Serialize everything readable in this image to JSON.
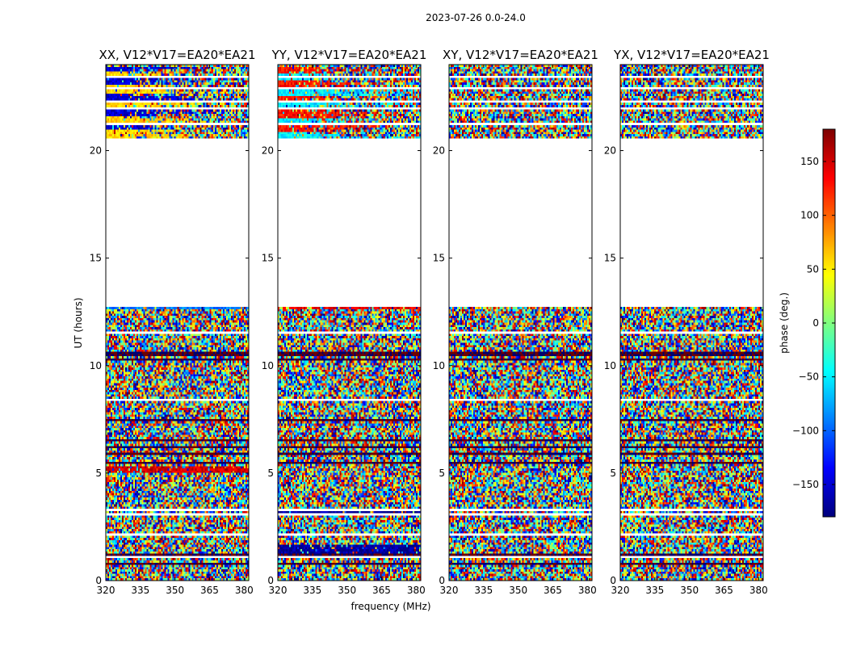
{
  "chart_data": {
    "type": "heatmap",
    "suptitle": "2023-07-26 0.0-24.0",
    "xlabel": "frequency (MHz)",
    "ylabel": "UT (hours)",
    "xlim": [
      320,
      382
    ],
    "ylim": [
      0,
      24
    ],
    "x_ticks": [
      320,
      335,
      350,
      365,
      380
    ],
    "y_ticks": [
      0,
      5,
      10,
      15,
      20
    ],
    "colorbar": {
      "label": "phase (deg.)",
      "range": [
        -180,
        180
      ],
      "ticks": [
        -150,
        -100,
        -50,
        0,
        50,
        100,
        150
      ],
      "colormap": "jet"
    },
    "data_gaps_hours": [
      [
        12.75,
        20.6
      ]
    ],
    "blank_rows_hours": [
      1.05,
      2.15,
      3.05,
      3.3,
      3.55,
      8.35,
      11.5,
      21.25,
      21.95,
      22.3,
      22.95,
      23.45
    ],
    "dark_rows_hours": [
      0.8,
      1.25,
      5.5,
      5.85,
      6.2,
      6.5,
      7.2,
      7.5,
      9.6,
      10.3,
      10.45,
      10.55
    ],
    "panels": [
      {
        "title": "XX, V12*V17=EA20*EA21",
        "pol": "XX",
        "stripes": [
          {
            "hours": [
              20.6,
              23.9
            ],
            "phase": -150,
            "character": "coherent red/orange and cyan horizontal bands, decorrelating toward high frequency"
          },
          {
            "hours": [
              5.0,
              5.3
            ],
            "phase": 150,
            "character": "red band"
          },
          {
            "hours": [
              8.3,
              8.45
            ],
            "phase": -170,
            "character": "blue band"
          },
          {
            "hours": [
              12.65,
              12.75
            ],
            "phase": -90,
            "character": "blue edge band"
          }
        ]
      },
      {
        "title": "YY, V12*V17=EA20*EA21",
        "pol": "YY",
        "stripes": [
          {
            "hours": [
              20.6,
              23.9
            ],
            "phase": 130,
            "character": "coherent yellow/red upper bands, cyan and blue lower bands"
          },
          {
            "hours": [
              1.3,
              1.7
            ],
            "phase": -170,
            "character": "blue and red bands"
          },
          {
            "hours": [
              3.0,
              3.2
            ],
            "phase": -170,
            "character": "blue band"
          },
          {
            "hours": [
              8.3,
              8.45
            ],
            "phase": 140,
            "character": "red band"
          },
          {
            "hours": [
              12.6,
              12.75
            ],
            "phase": 140,
            "character": "red edge band"
          }
        ]
      },
      {
        "title": "XY, V12*V17=EA20*EA21",
        "pol": "XY",
        "stripes": []
      },
      {
        "title": "YX, V12*V17=EA20*EA21",
        "pol": "YX",
        "stripes": []
      }
    ]
  }
}
